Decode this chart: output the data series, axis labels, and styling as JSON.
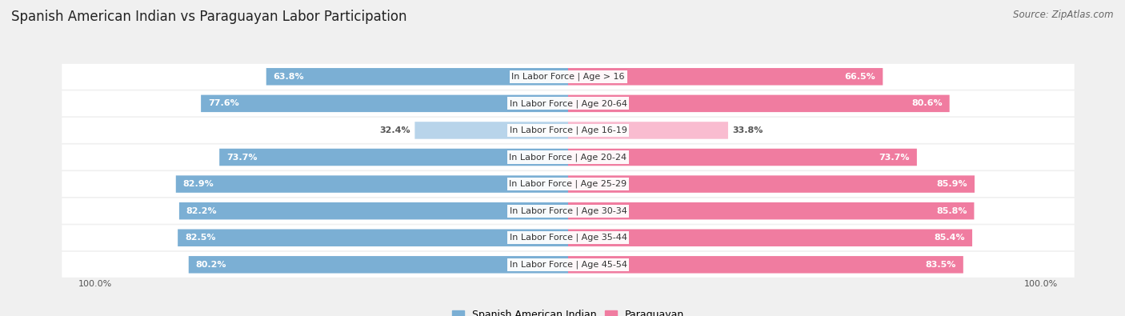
{
  "title": "Spanish American Indian vs Paraguayan Labor Participation",
  "source": "Source: ZipAtlas.com",
  "categories": [
    "In Labor Force | Age > 16",
    "In Labor Force | Age 20-64",
    "In Labor Force | Age 16-19",
    "In Labor Force | Age 20-24",
    "In Labor Force | Age 25-29",
    "In Labor Force | Age 30-34",
    "In Labor Force | Age 35-44",
    "In Labor Force | Age 45-54"
  ],
  "spanish_values": [
    63.8,
    77.6,
    32.4,
    73.7,
    82.9,
    82.2,
    82.5,
    80.2
  ],
  "paraguayan_values": [
    66.5,
    80.6,
    33.8,
    73.7,
    85.9,
    85.8,
    85.4,
    83.5
  ],
  "spanish_color": "#7bafd4",
  "paraguayan_color": "#f07ca0",
  "spanish_light_color": "#b8d4ea",
  "paraguayan_light_color": "#f9bcd0",
  "background_color": "#f0f0f0",
  "row_bg_color": "#ffffff",
  "bar_height": 0.62,
  "x_max": 100,
  "legend_spanish": "Spanish American Indian",
  "legend_paraguayan": "Paraguayan",
  "title_fontsize": 12,
  "source_fontsize": 8.5,
  "value_fontsize": 8,
  "category_fontsize": 8,
  "axis_label_fontsize": 8
}
